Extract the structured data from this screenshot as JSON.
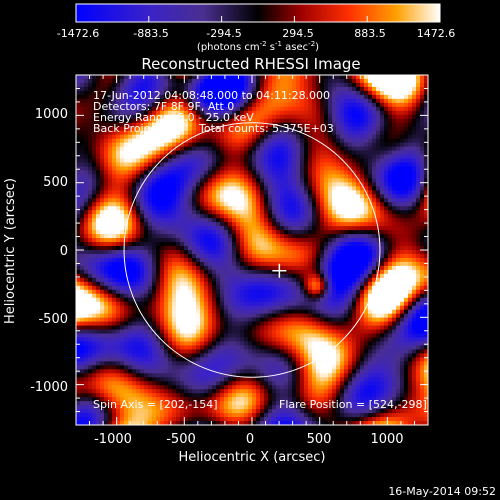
{
  "chart_data": {
    "type": "heatmap",
    "title": "Reconstructed RHESSI Image",
    "xlabel": "Heliocentric X (arcsec)",
    "ylabel": "Heliocentric Y (arcsec)",
    "xlim": [
      -1300,
      1300
    ],
    "ylim": [
      -1300,
      1300
    ],
    "xticks": [
      "-1000",
      "-500",
      "0",
      "500",
      "1000"
    ],
    "yticks": [
      "-1000",
      "-500",
      "0",
      "500",
      "1000"
    ],
    "colorbar": {
      "min": -1472.6,
      "max": 1472.6,
      "ticks": [
        "-1472.6",
        "-883.5",
        "-294.5",
        "294.5",
        "883.5",
        "1472.6"
      ],
      "units_prefix": "(photons cm",
      "units_sup1": "-2",
      "units_mid1": " s",
      "units_sup2": "-1",
      "units_mid2": " asec",
      "units_sup3": "-2",
      "units_suffix": ")"
    },
    "annotations": {
      "line1": "17-Jun-2012 04:08:48.000 to 04:11:28.000",
      "line2": "Detectors: 7F 8F 9F, Att 0",
      "line3": "Energy Range: 6.0 - 25.0 keV",
      "line4_left": "Back Projection",
      "line4_right": "Total counts: 5.375E+03",
      "spin_axis": "Spin Axis = [202,-154]",
      "flare_position": "Flare Position = [524,-298]"
    },
    "solar_limb": {
      "center": [
        0,
        0
      ],
      "radius": 945
    },
    "flare_marker": {
      "x": 202,
      "y": -154
    },
    "bright_source": {
      "x": 480,
      "y": -270
    },
    "timestamp": "16-May-2014 09:52",
    "colors": {
      "background": "#000000",
      "colormap": [
        "#0000ff",
        "#3c1fbf",
        "#4a2f8f",
        "#000000",
        "#b00000",
        "#ff3000",
        "#ff9900",
        "#ffffff"
      ]
    }
  }
}
